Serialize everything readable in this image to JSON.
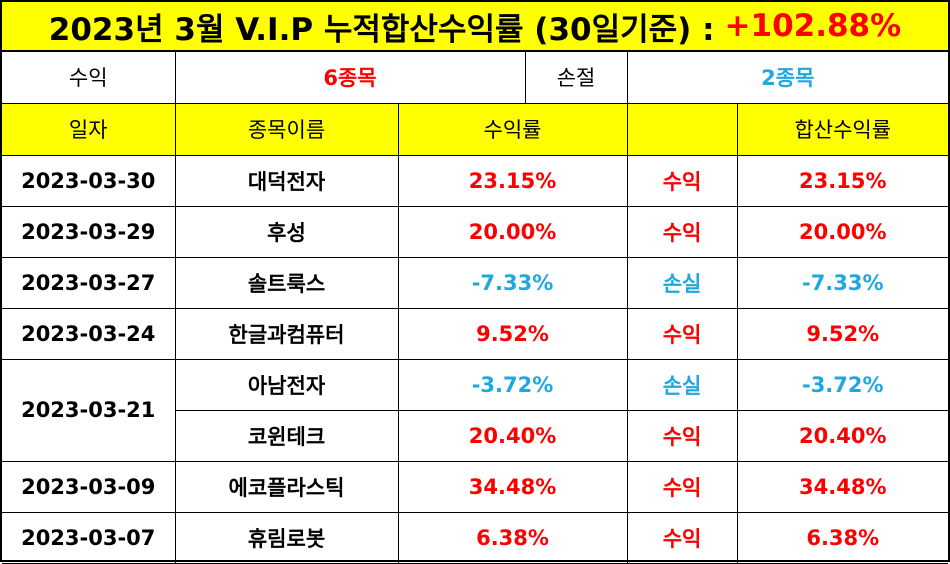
{
  "title": {
    "text": "2023년 3월 V.I.P 누적합산수익률 (30일기준) :",
    "total": "+102.88%"
  },
  "summary": {
    "profit_label": "수익",
    "profit_count": "6종목",
    "loss_label": "손절",
    "loss_count": "2종목"
  },
  "headers": {
    "date": "일자",
    "name": "종목이름",
    "rate": "수익률",
    "result": "",
    "cumulative": "합산수익률"
  },
  "colors": {
    "header_bg": "#ffff00",
    "profit": "#ff0000",
    "loss": "#1fa7e0"
  },
  "rows": [
    {
      "date": "2023-03-30",
      "name": "대덕전자",
      "rate": "23.15%",
      "result": "수익",
      "cumulative": "23.15%"
    },
    {
      "date": "2023-03-29",
      "name": "후성",
      "rate": "20.00%",
      "result": "수익",
      "cumulative": "20.00%"
    },
    {
      "date": "2023-03-27",
      "name": "솔트룩스",
      "rate": "-7.33%",
      "result": "손실",
      "cumulative": "-7.33%"
    },
    {
      "date": "2023-03-24",
      "name": "한글과컴퓨터",
      "rate": "9.52%",
      "result": "수익",
      "cumulative": "9.52%"
    },
    {
      "date": "2023-03-21",
      "name": "아남전자",
      "rate": "-3.72%",
      "result": "손실",
      "cumulative": "-3.72%"
    },
    {
      "date": "",
      "name": "코윈테크",
      "rate": "20.40%",
      "result": "수익",
      "cumulative": "20.40%"
    },
    {
      "date": "2023-03-09",
      "name": "에코플라스틱",
      "rate": "34.48%",
      "result": "수익",
      "cumulative": "34.48%"
    },
    {
      "date": "2023-03-07",
      "name": "휴림로봇",
      "rate": "6.38%",
      "result": "수익",
      "cumulative": "6.38%"
    }
  ]
}
